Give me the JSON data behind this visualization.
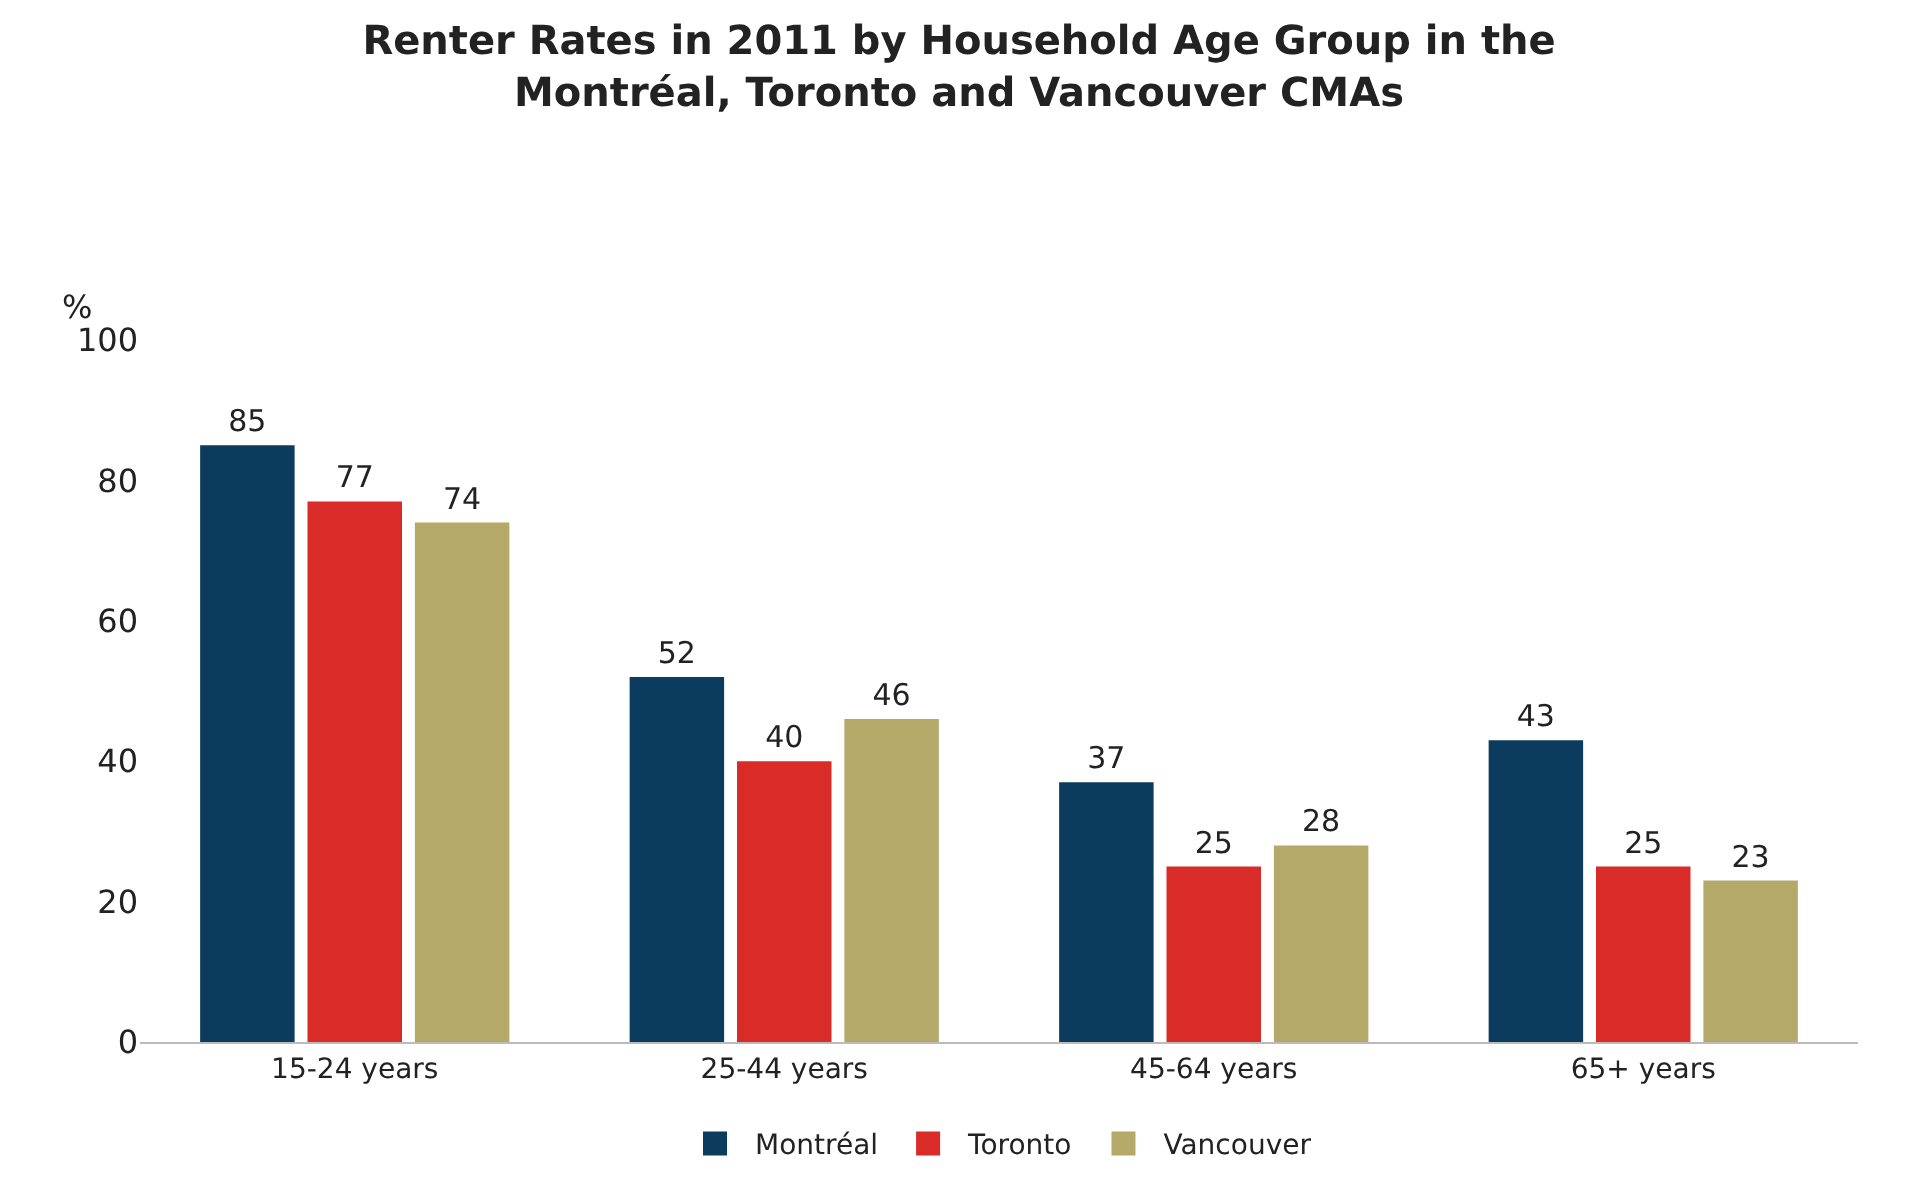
{
  "chart_data": {
    "type": "bar",
    "title": "Renter Rates in 2011 by Household Age Group in the Montréal, Toronto and Vancouver CMAs",
    "ylabel": "%",
    "categories": [
      "15-24 years",
      "25-44 years",
      "45-64 years",
      "65+ years"
    ],
    "series": [
      {
        "name": "Montréal",
        "color": "#0b3c5d",
        "values": [
          85,
          52,
          37,
          43
        ]
      },
      {
        "name": "Toronto",
        "color": "#d92b27",
        "values": [
          77,
          40,
          25,
          25
        ]
      },
      {
        "name": "Vancouver",
        "color": "#b5a96a",
        "values": [
          74,
          46,
          28,
          23
        ]
      }
    ],
    "ylim": [
      0,
      100
    ],
    "yticks": [
      0,
      20,
      40,
      60,
      80,
      100
    ],
    "data_labels": true,
    "legend": "bottom"
  }
}
